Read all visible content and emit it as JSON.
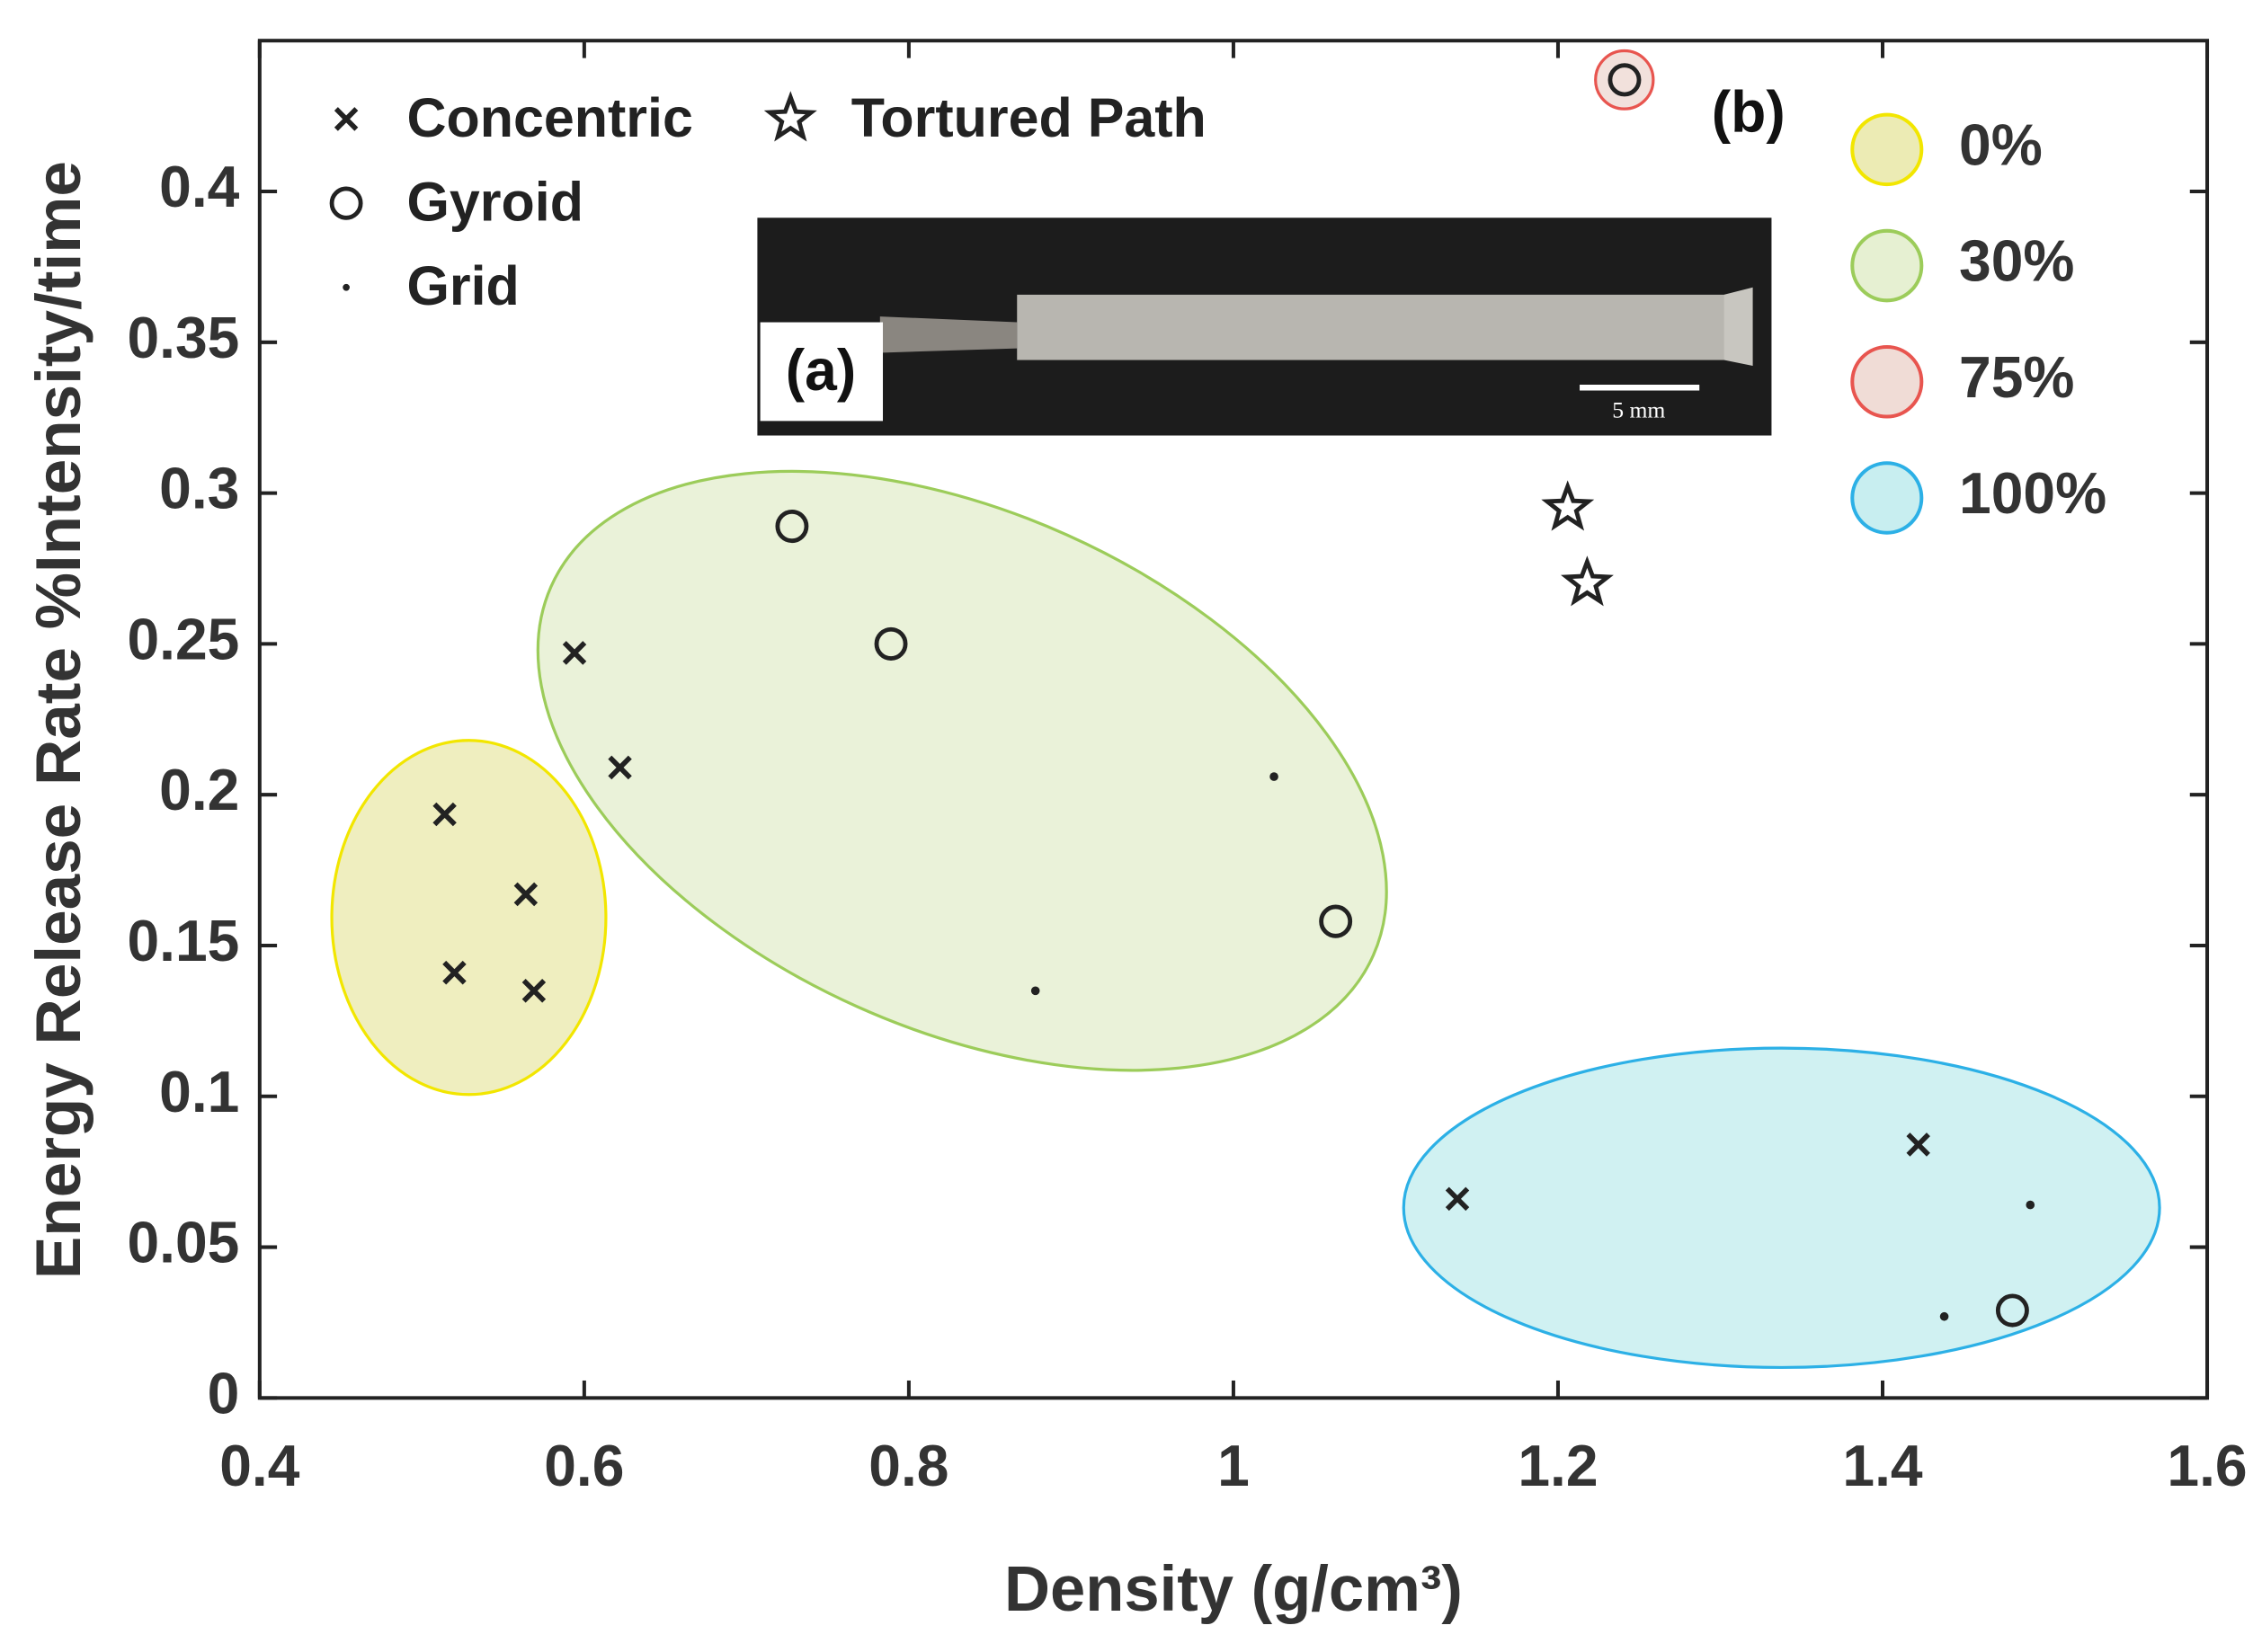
{
  "chart_data": {
    "type": "scatter",
    "xlabel": "Density (g/cm³)",
    "ylabel": "Energy Release Rate %Intensity/time",
    "xlim": [
      0.4,
      1.6
    ],
    "ylim": [
      0,
      0.45
    ],
    "xticks": [
      0.4,
      0.6,
      0.8,
      1,
      1.2,
      1.4,
      1.6
    ],
    "yticks": [
      0,
      0.05,
      0.1,
      0.15,
      0.2,
      0.25,
      0.3,
      0.35,
      0.4
    ],
    "grid": false,
    "legend": "upper left",
    "series": [
      {
        "name": "Concentric",
        "marker": "x",
        "color": "#222222",
        "x": [
          0.514,
          0.52,
          0.564,
          0.569,
          0.594,
          0.622,
          1.138,
          1.422
        ],
        "values": [
          0.1935,
          0.141,
          0.167,
          0.135,
          0.247,
          0.209,
          0.066,
          0.084
        ]
      },
      {
        "name": "Gyroid",
        "marker": "o",
        "color": "#222222",
        "x": [
          0.728,
          0.789,
          1.063,
          1.48,
          1.241
        ],
        "values": [
          0.289,
          0.25,
          0.158,
          0.029,
          0.437
        ]
      },
      {
        "name": "Grid",
        "marker": ".",
        "color": "#222222",
        "x": [
          1.025,
          0.878,
          1.491,
          1.438
        ],
        "values": [
          0.206,
          0.135,
          0.064,
          0.027
        ]
      },
      {
        "name": "Tortured Path",
        "marker": "*",
        "color": "#222222",
        "x": [
          1.206,
          1.218
        ],
        "values": [
          0.295,
          0.27
        ]
      }
    ],
    "groups": [
      {
        "name": "0%",
        "color": "#f2e600",
        "fill": "#ecebb4"
      },
      {
        "name": "30%",
        "color": "#9ccc5a",
        "fill": "#e6f0d2"
      },
      {
        "name": "75%",
        "color": "#e8554f",
        "fill": "#f0dcd6"
      },
      {
        "name": "100%",
        "color": "#2cb0e6",
        "fill": "#c8eef0"
      }
    ],
    "annotations": {
      "panel_b": "(b)",
      "panel_a": "(a)",
      "scale_bar": "5 mm"
    }
  }
}
